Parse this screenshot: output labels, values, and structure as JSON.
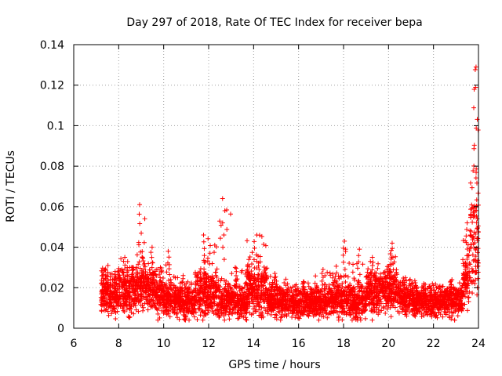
{
  "chart_data": {
    "type": "scatter",
    "title": "Day 297 of 2018, Rate Of TEC Index for receiver bepa",
    "xlabel": "GPS time / hours",
    "ylabel": "ROTI / TECUs",
    "xlim": [
      6,
      24
    ],
    "ylim": [
      0,
      0.14
    ],
    "xticks": [
      6,
      8,
      10,
      12,
      14,
      16,
      18,
      20,
      22,
      24
    ],
    "yticks": [
      0,
      0.02,
      0.04,
      0.06,
      0.08,
      0.1,
      0.12,
      0.14
    ],
    "xtick_labels": [
      "6",
      "8",
      "10",
      "12",
      "14",
      "16",
      "18",
      "20",
      "22",
      "24"
    ],
    "ytick_labels": [
      "0",
      "0.02",
      "0.04",
      "0.06",
      "0.08",
      "0.1",
      "0.12",
      "0.14"
    ],
    "grid": true,
    "marker": "+",
    "color": "#ff0000",
    "series": [
      {
        "name": "ROTI",
        "envelope_note": "approximate per-window ROTI distribution read from the plot",
        "windows": [
          {
            "x0": 7.2,
            "x1": 7.6,
            "base": 0.017,
            "spread": 0.01,
            "peak": 0.031
          },
          {
            "x0": 7.6,
            "x1": 8.0,
            "base": 0.016,
            "spread": 0.01,
            "peak": 0.028
          },
          {
            "x0": 8.0,
            "x1": 8.4,
            "base": 0.019,
            "spread": 0.011,
            "peak": 0.035
          },
          {
            "x0": 8.4,
            "x1": 8.8,
            "base": 0.018,
            "spread": 0.011,
            "peak": 0.03
          },
          {
            "x0": 8.8,
            "x1": 9.2,
            "base": 0.022,
            "spread": 0.012,
            "peak": 0.061
          },
          {
            "x0": 9.2,
            "x1": 9.6,
            "base": 0.019,
            "spread": 0.011,
            "peak": 0.04
          },
          {
            "x0": 9.6,
            "x1": 10.0,
            "base": 0.016,
            "spread": 0.01,
            "peak": 0.03
          },
          {
            "x0": 10.0,
            "x1": 10.6,
            "base": 0.014,
            "spread": 0.008,
            "peak": 0.038
          },
          {
            "x0": 10.6,
            "x1": 11.4,
            "base": 0.013,
            "spread": 0.008,
            "peak": 0.026
          },
          {
            "x0": 11.4,
            "x1": 12.4,
            "base": 0.018,
            "spread": 0.012,
            "peak": 0.046
          },
          {
            "x0": 12.4,
            "x1": 13.0,
            "base": 0.014,
            "spread": 0.009,
            "peak": 0.064
          },
          {
            "x0": 13.0,
            "x1": 13.7,
            "base": 0.013,
            "spread": 0.008,
            "peak": 0.03
          },
          {
            "x0": 13.7,
            "x1": 14.6,
            "base": 0.019,
            "spread": 0.012,
            "peak": 0.046
          },
          {
            "x0": 14.6,
            "x1": 15.6,
            "base": 0.014,
            "spread": 0.008,
            "peak": 0.027
          },
          {
            "x0": 15.6,
            "x1": 16.6,
            "base": 0.013,
            "spread": 0.007,
            "peak": 0.023
          },
          {
            "x0": 16.6,
            "x1": 17.5,
            "base": 0.013,
            "spread": 0.008,
            "peak": 0.029
          },
          {
            "x0": 17.5,
            "x1": 18.3,
            "base": 0.014,
            "spread": 0.009,
            "peak": 0.043
          },
          {
            "x0": 18.3,
            "x1": 19.0,
            "base": 0.013,
            "spread": 0.009,
            "peak": 0.039
          },
          {
            "x0": 19.0,
            "x1": 19.8,
            "base": 0.018,
            "spread": 0.01,
            "peak": 0.035
          },
          {
            "x0": 19.8,
            "x1": 20.4,
            "base": 0.02,
            "spread": 0.011,
            "peak": 0.042
          },
          {
            "x0": 20.4,
            "x1": 21.2,
            "base": 0.015,
            "spread": 0.008,
            "peak": 0.025
          },
          {
            "x0": 21.2,
            "x1": 22.4,
            "base": 0.013,
            "spread": 0.007,
            "peak": 0.022
          },
          {
            "x0": 22.4,
            "x1": 23.3,
            "base": 0.014,
            "spread": 0.008,
            "peak": 0.024
          },
          {
            "x0": 23.3,
            "x1": 23.6,
            "base": 0.025,
            "spread": 0.012,
            "peak": 0.052
          },
          {
            "x0": 23.6,
            "x1": 24.0,
            "base": 0.045,
            "spread": 0.03,
            "peak": 0.129
          }
        ]
      }
    ]
  }
}
